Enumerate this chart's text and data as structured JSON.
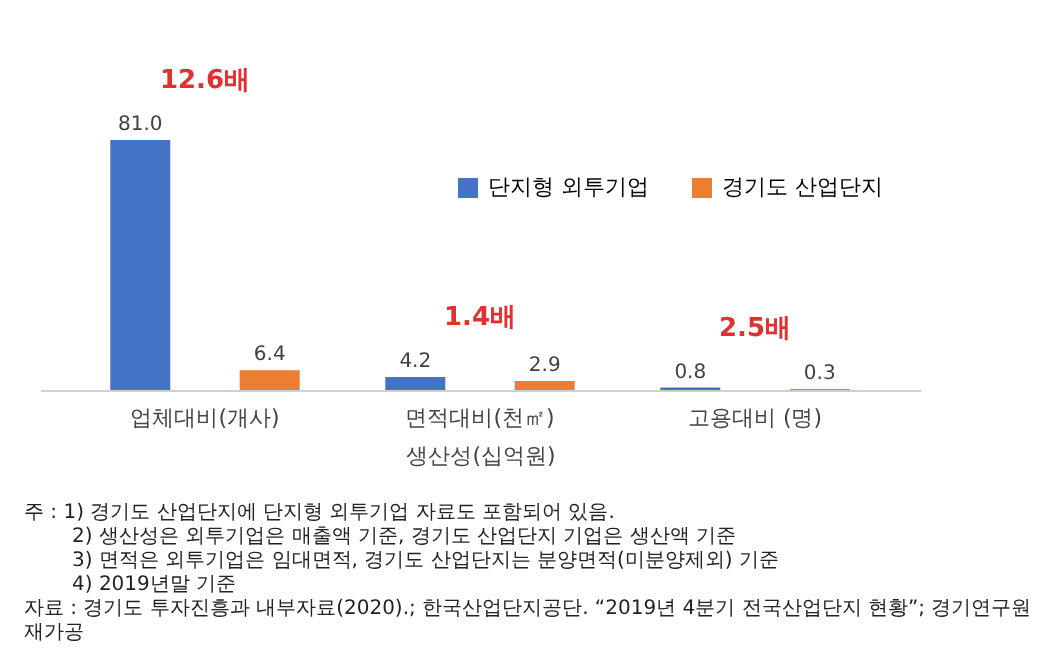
{
  "chart_data": {
    "type": "bar",
    "xlabel": "생산성(십억원)",
    "categories": [
      "업체대비(개사)",
      "면적대비(천㎡)",
      "고용대비 (명)"
    ],
    "series": [
      {
        "name": "단지형 외투기업",
        "color": "#4472c4",
        "values": [
          81.0,
          4.2,
          0.8
        ],
        "value_labels": [
          "81.0",
          "4.2",
          "0.8"
        ]
      },
      {
        "name": "경기도 산업단지",
        "color": "#ed7d31",
        "values": [
          6.4,
          2.9,
          0.3
        ],
        "value_labels": [
          "6.4",
          "2.9",
          "0.3"
        ]
      }
    ],
    "legend": "top right",
    "annotations": [
      "12.6배",
      "1.4배",
      "2.5배",
      "주 : 1) 경기도 산업단지에 단지형 외투기업 자료도 포함되어 있음.",
      "2) 생산성은 외투기업은 매출액 기준, 경기도 산업단지 기업은 생산액 기준",
      "3) 면적은 외투기업은 임대면적, 경기도 산업단지는 분양면적(미분양제외) 기준",
      "4) 2019년말 기준",
      "자료 : 경기도 투자진흥과 내부자료(2020).; 한국산업단지공단. “2019년 4분기 전국산업단지 현황”; 경기연구원 재가공"
    ]
  }
}
